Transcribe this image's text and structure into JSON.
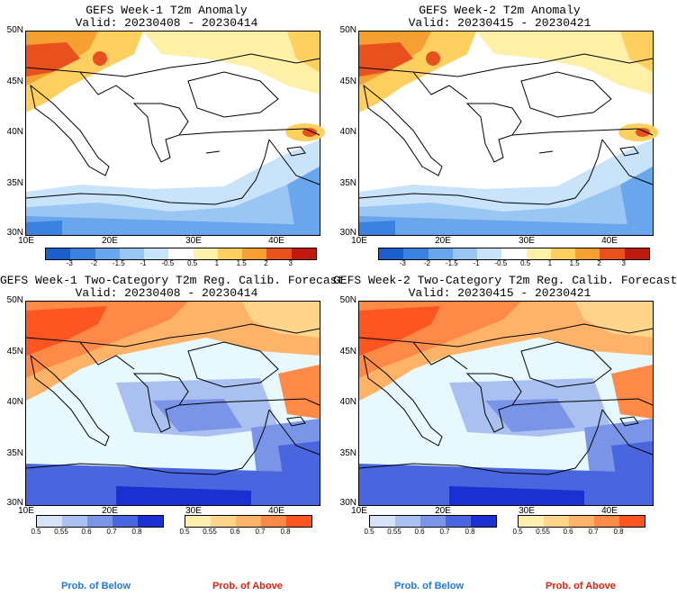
{
  "panels": [
    {
      "title": "GEFS Week-1 T2m Anomaly",
      "valid": "Valid: 20230408 - 20230414"
    },
    {
      "title": "GEFS Week-2 T2m Anomaly",
      "valid": "Valid: 20230415 - 20230421"
    },
    {
      "title": "GEFS Week-1 Two-Category T2m Reg. Calib. Forecast",
      "valid": "Valid: 20230408 - 20230414"
    },
    {
      "title": "GEFS Week-2 Two-Category T2m Reg. Calib. Forecast",
      "valid": "Valid: 20230415 - 20230421"
    }
  ],
  "axes": {
    "lat_labels": [
      "50N",
      "45N",
      "40N",
      "35N",
      "30N"
    ],
    "lon_labels": [
      "10E",
      "20E",
      "30E",
      "40E"
    ]
  },
  "anomaly_colorbar": {
    "labels": [
      "-3",
      "-2",
      "-1.5",
      "-1",
      "-0.5",
      "0.5",
      "1",
      "1.5",
      "2",
      "3"
    ],
    "colors": [
      "#1a5fcc",
      "#3b82e0",
      "#6aa6ec",
      "#9ac6f3",
      "#c8e3fa",
      "#ffffff",
      "#fff0a8",
      "#ffd060",
      "#f5a030",
      "#e8501e",
      "#c01a10"
    ]
  },
  "prob_colorbars": {
    "below": {
      "labels": [
        "0.5",
        "0.55",
        "0.6",
        "0.7",
        "0.8"
      ],
      "colors": [
        "#d6e3f7",
        "#a9c0f0",
        "#7a95e8",
        "#4a66de",
        "#1c2fd0"
      ],
      "caption": "Prob. of Below"
    },
    "above": {
      "labels": [
        "0.5",
        "0.55",
        "0.6",
        "0.7",
        "0.8"
      ],
      "colors": [
        "#fff0b0",
        "#ffd58c",
        "#ffb368",
        "#ff8a48",
        "#ff5520"
      ],
      "caption": "Prob. of Above"
    }
  }
}
